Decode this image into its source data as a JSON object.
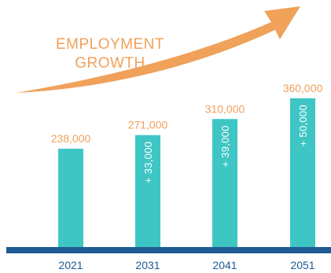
{
  "chart_data": {
    "type": "bar",
    "title_lines": [
      "EMPLOYMENT",
      "GROWTH"
    ],
    "categories": [
      "2021",
      "2031",
      "2041",
      "2051"
    ],
    "values": [
      238000,
      271000,
      310000,
      360000
    ],
    "value_labels": [
      "238,000",
      "271,000",
      "310,000",
      "360,000"
    ],
    "delta_labels": [
      "",
      "+ 33,000",
      "+ 39,000",
      "+ 50,000"
    ],
    "xlabel": "",
    "ylabel": "",
    "grid": false,
    "colors": {
      "bar": "#3EC6C4",
      "value_text": "#F0A15A",
      "arrow": "#F0A15A",
      "baseline": "#1E5A93",
      "year_text": "#1E5A93",
      "delta_text": "#FFFFFF"
    }
  }
}
